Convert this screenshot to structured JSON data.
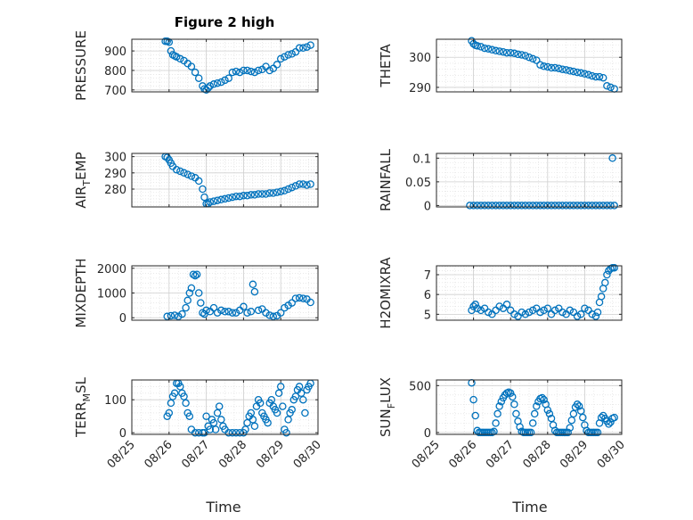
{
  "figure": {
    "title": "Figure 2 high",
    "xlabel_left": "Time",
    "xlabel_right": "Time",
    "marker_color": "#0072BD"
  },
  "chart_data": [
    {
      "type": "scatter",
      "name": "PRESSURE",
      "ylabel": {
        "main": "PRESSURE",
        "sub": ""
      },
      "ylim": [
        690,
        960
      ],
      "yticks": [
        700,
        800,
        900
      ],
      "yticklabels": [
        "700",
        "800",
        "900"
      ],
      "xlim": [
        "08/25",
        "08/30"
      ],
      "xtick_labels_shown": false,
      "grid": true,
      "x": [
        25.9,
        25.95,
        26.0,
        26.05,
        26.1,
        26.15,
        26.2,
        26.3,
        26.4,
        26.5,
        26.6,
        26.7,
        26.8,
        26.9,
        26.95,
        27.0,
        27.05,
        27.1,
        27.2,
        27.3,
        27.4,
        27.5,
        27.6,
        27.7,
        27.8,
        27.9,
        28.0,
        28.1,
        28.2,
        28.3,
        28.4,
        28.5,
        28.6,
        28.7,
        28.8,
        28.9,
        29.0,
        29.1,
        29.2,
        29.3,
        29.4,
        29.5,
        29.6,
        29.7,
        29.8
      ],
      "y": [
        950,
        950,
        945,
        900,
        880,
        875,
        870,
        860,
        850,
        835,
        820,
        790,
        760,
        720,
        705,
        700,
        710,
        720,
        730,
        735,
        740,
        750,
        760,
        790,
        795,
        790,
        800,
        800,
        795,
        790,
        800,
        805,
        820,
        800,
        810,
        830,
        860,
        870,
        880,
        885,
        895,
        915,
        915,
        920,
        930
      ]
    },
    {
      "type": "scatter",
      "name": "THETA",
      "ylabel": {
        "main": "THETA",
        "sub": ""
      },
      "ylim": [
        288.5,
        306
      ],
      "yticks": [
        290,
        300
      ],
      "yticklabels": [
        "290",
        "300"
      ],
      "xlim": [
        "08/25",
        "08/30"
      ],
      "xtick_labels_shown": false,
      "grid": true,
      "x": [
        25.95,
        26.0,
        26.05,
        26.1,
        26.2,
        26.3,
        26.4,
        26.5,
        26.6,
        26.7,
        26.8,
        26.9,
        27.0,
        27.1,
        27.2,
        27.3,
        27.4,
        27.5,
        27.6,
        27.7,
        27.8,
        27.9,
        28.0,
        28.1,
        28.2,
        28.3,
        28.4,
        28.5,
        28.6,
        28.7,
        28.8,
        28.9,
        29.0,
        29.1,
        29.2,
        29.3,
        29.4,
        29.5,
        29.6,
        29.7,
        29.8
      ],
      "y": [
        305.5,
        304.5,
        304,
        303.8,
        303.5,
        303,
        302.8,
        302.5,
        302.2,
        302,
        301.8,
        301.5,
        301.5,
        301.3,
        301,
        300.8,
        300.5,
        300,
        299.5,
        299,
        297.5,
        297,
        296.8,
        296.5,
        296.5,
        296.3,
        296,
        295.8,
        295.5,
        295.3,
        295,
        294.8,
        294.5,
        294.2,
        293.8,
        293.5,
        293.5,
        293.2,
        290.5,
        290,
        289.5
      ]
    },
    {
      "type": "scatter",
      "name": "AIR_TEMP",
      "ylabel": {
        "main": "AIR",
        "sub": "T",
        "rest": "EMP"
      },
      "ylim": [
        269,
        302
      ],
      "yticks": [
        280,
        290,
        300
      ],
      "yticklabels": [
        "280",
        "290",
        "300"
      ],
      "xlim": [
        "08/25",
        "08/30"
      ],
      "xtick_labels_shown": false,
      "grid": true,
      "x": [
        25.9,
        25.95,
        26.0,
        26.05,
        26.1,
        26.2,
        26.3,
        26.4,
        26.5,
        26.6,
        26.7,
        26.8,
        26.9,
        26.95,
        27.0,
        27.05,
        27.1,
        27.2,
        27.3,
        27.4,
        27.5,
        27.6,
        27.7,
        27.8,
        27.9,
        28.0,
        28.1,
        28.2,
        28.3,
        28.4,
        28.5,
        28.6,
        28.7,
        28.8,
        28.9,
        29.0,
        29.1,
        29.2,
        29.3,
        29.4,
        29.5,
        29.6,
        29.7,
        29.8
      ],
      "y": [
        300,
        299.5,
        298,
        296,
        294,
        292,
        291,
        290,
        289,
        288,
        287,
        285,
        280,
        275,
        271,
        271,
        272,
        272.5,
        273,
        273.5,
        274,
        274.5,
        275,
        275.5,
        275.5,
        276,
        276,
        276.5,
        276.5,
        277,
        277,
        277,
        277.5,
        277.5,
        278,
        278.5,
        279,
        280,
        281,
        282,
        283,
        283,
        282.5,
        283
      ]
    },
    {
      "type": "scatter",
      "name": "RAINFALL",
      "ylabel": {
        "main": "RAINFALL",
        "sub": ""
      },
      "ylim": [
        -0.003,
        0.11
      ],
      "yticks": [
        0,
        0.05,
        0.1
      ],
      "yticklabels": [
        "0",
        "0.05",
        "0.1"
      ],
      "xlim": [
        "08/25",
        "08/30"
      ],
      "xtick_labels_shown": false,
      "grid": true,
      "x": [
        25.9,
        26.0,
        26.1,
        26.2,
        26.3,
        26.4,
        26.5,
        26.6,
        26.7,
        26.8,
        26.9,
        27.0,
        27.1,
        27.2,
        27.3,
        27.4,
        27.5,
        27.6,
        27.7,
        27.8,
        27.9,
        28.0,
        28.1,
        28.2,
        28.3,
        28.4,
        28.5,
        28.6,
        28.7,
        28.8,
        28.9,
        29.0,
        29.1,
        29.2,
        29.3,
        29.4,
        29.5,
        29.6,
        29.7,
        29.75,
        29.8
      ],
      "y": [
        0,
        0,
        0,
        0,
        0,
        0,
        0,
        0,
        0,
        0,
        0,
        0,
        0,
        0,
        0,
        0,
        0,
        0,
        0,
        0,
        0,
        0,
        0,
        0,
        0,
        0,
        0,
        0,
        0,
        0,
        0,
        0,
        0,
        0,
        0,
        0,
        0,
        0,
        0,
        0.1,
        0
      ]
    },
    {
      "type": "scatter",
      "name": "MIXDEPTH",
      "ylabel": {
        "main": "MIXDEPTH",
        "sub": ""
      },
      "ylim": [
        -100,
        2100
      ],
      "yticks": [
        0,
        1000,
        2000
      ],
      "yticklabels": [
        "0",
        "1000",
        "2000"
      ],
      "xlim": [
        "08/25",
        "08/30"
      ],
      "xtick_labels_shown": false,
      "grid": true,
      "x": [
        25.95,
        26.05,
        26.15,
        26.25,
        26.35,
        26.45,
        26.5,
        26.55,
        26.6,
        26.65,
        26.7,
        26.75,
        26.8,
        26.85,
        26.9,
        26.95,
        27.0,
        27.1,
        27.2,
        27.3,
        27.4,
        27.5,
        27.6,
        27.7,
        27.8,
        27.9,
        28.0,
        28.1,
        28.2,
        28.25,
        28.3,
        28.4,
        28.5,
        28.6,
        28.7,
        28.8,
        28.9,
        29.0,
        29.1,
        29.2,
        29.3,
        29.4,
        29.5,
        29.6,
        29.7,
        29.8
      ],
      "y": [
        50,
        80,
        100,
        50,
        150,
        400,
        700,
        1000,
        1200,
        1750,
        1700,
        1750,
        1000,
        600,
        200,
        150,
        300,
        250,
        400,
        200,
        300,
        250,
        250,
        200,
        200,
        300,
        450,
        200,
        250,
        1350,
        1050,
        300,
        350,
        200,
        100,
        50,
        80,
        200,
        400,
        500,
        600,
        780,
        800,
        780,
        750,
        620
      ]
    },
    {
      "type": "scatter",
      "name": "H2OMIXRA",
      "ylabel": {
        "main": "H2OMIXRA",
        "sub": ""
      },
      "ylim": [
        4.7,
        7.45
      ],
      "yticks": [
        5,
        6,
        7
      ],
      "yticklabels": [
        "5",
        "6",
        "7"
      ],
      "xlim": [
        "08/25",
        "08/30"
      ],
      "xtick_labels_shown": false,
      "grid": true,
      "x": [
        25.95,
        26.0,
        26.05,
        26.1,
        26.2,
        26.3,
        26.4,
        26.5,
        26.6,
        26.7,
        26.8,
        26.9,
        27.0,
        27.1,
        27.2,
        27.3,
        27.4,
        27.5,
        27.6,
        27.7,
        27.8,
        27.9,
        28.0,
        28.1,
        28.2,
        28.3,
        28.4,
        28.5,
        28.6,
        28.7,
        28.8,
        28.9,
        29.0,
        29.1,
        29.2,
        29.3,
        29.35,
        29.4,
        29.45,
        29.5,
        29.55,
        29.6,
        29.65,
        29.7,
        29.75,
        29.8
      ],
      "y": [
        5.2,
        5.4,
        5.5,
        5.3,
        5.2,
        5.3,
        5.1,
        5.0,
        5.2,
        5.4,
        5.3,
        5.5,
        5.2,
        5.0,
        4.9,
        5.1,
        5.0,
        5.1,
        5.2,
        5.3,
        5.1,
        5.2,
        5.3,
        5.0,
        5.2,
        5.3,
        5.1,
        5.0,
        5.2,
        5.1,
        4.9,
        5.0,
        5.3,
        5.2,
        5.0,
        4.9,
        5.1,
        5.6,
        5.9,
        6.3,
        6.6,
        7.0,
        7.2,
        7.3,
        7.35,
        7.35
      ]
    },
    {
      "type": "scatter",
      "name": "TERR_MSL",
      "ylabel": {
        "main": "TERR",
        "sub": "M",
        "rest": "SL"
      },
      "ylim": [
        -5,
        160
      ],
      "yticks": [
        0,
        100
      ],
      "yticklabels": [
        "0",
        "100"
      ],
      "xlim": [
        "08/25",
        "08/30"
      ],
      "xticks": [
        25,
        26,
        27,
        28,
        29,
        30
      ],
      "xticklabels": [
        "08/25",
        "08/26",
        "08/27",
        "08/28",
        "08/29",
        "08/30"
      ],
      "grid": true,
      "x": [
        25.95,
        26.0,
        26.05,
        26.1,
        26.15,
        26.2,
        26.25,
        26.3,
        26.35,
        26.4,
        26.45,
        26.5,
        26.55,
        26.6,
        26.7,
        26.8,
        26.9,
        26.95,
        27.0,
        27.05,
        27.1,
        27.15,
        27.2,
        27.25,
        27.3,
        27.35,
        27.4,
        27.45,
        27.5,
        27.6,
        27.7,
        27.8,
        27.9,
        28.0,
        28.05,
        28.1,
        28.15,
        28.2,
        28.25,
        28.3,
        28.35,
        28.4,
        28.45,
        28.5,
        28.55,
        28.6,
        28.65,
        28.7,
        28.75,
        28.8,
        28.85,
        28.9,
        28.95,
        29.0,
        29.05,
        29.1,
        29.15,
        29.2,
        29.25,
        29.3,
        29.35,
        29.4,
        29.45,
        29.5,
        29.55,
        29.6,
        29.65,
        29.7,
        29.75,
        29.8
      ],
      "y": [
        50,
        60,
        90,
        110,
        120,
        150,
        150,
        140,
        120,
        110,
        90,
        60,
        50,
        10,
        0,
        0,
        0,
        0,
        50,
        20,
        10,
        40,
        30,
        10,
        60,
        80,
        40,
        20,
        10,
        0,
        0,
        0,
        0,
        0,
        10,
        30,
        50,
        60,
        40,
        20,
        80,
        100,
        90,
        60,
        50,
        40,
        30,
        90,
        100,
        80,
        70,
        60,
        120,
        140,
        80,
        10,
        0,
        40,
        60,
        70,
        100,
        110,
        130,
        140,
        120,
        100,
        60,
        130,
        140,
        150
      ]
    },
    {
      "type": "scatter",
      "name": "SUN_FLUX",
      "ylabel": {
        "main": "SUN",
        "sub": "F",
        "rest": "LUX"
      },
      "ylim": [
        -20,
        560
      ],
      "yticks": [
        0,
        500
      ],
      "yticklabels": [
        "0",
        "500"
      ],
      "xlim": [
        "08/25",
        "08/30"
      ],
      "xticks": [
        25,
        26,
        27,
        28,
        29,
        30
      ],
      "xticklabels": [
        "08/25",
        "08/26",
        "08/27",
        "08/28",
        "08/29",
        "08/30"
      ],
      "grid": true,
      "x": [
        25.95,
        26.0,
        26.05,
        26.1,
        26.15,
        26.2,
        26.25,
        26.3,
        26.35,
        26.4,
        26.45,
        26.5,
        26.55,
        26.6,
        26.65,
        26.7,
        26.75,
        26.8,
        26.85,
        26.9,
        26.95,
        27.0,
        27.05,
        27.1,
        27.15,
        27.2,
        27.25,
        27.3,
        27.35,
        27.4,
        27.45,
        27.5,
        27.55,
        27.6,
        27.65,
        27.7,
        27.75,
        27.8,
        27.85,
        27.9,
        27.95,
        28.0,
        28.05,
        28.1,
        28.15,
        28.2,
        28.25,
        28.3,
        28.35,
        28.4,
        28.45,
        28.5,
        28.55,
        28.6,
        28.65,
        28.7,
        28.75,
        28.8,
        28.85,
        28.9,
        28.95,
        29.0,
        29.05,
        29.1,
        29.15,
        29.2,
        29.25,
        29.3,
        29.35,
        29.4,
        29.45,
        29.5,
        29.55,
        29.6,
        29.65,
        29.7,
        29.75,
        29.8
      ],
      "y": [
        530,
        350,
        180,
        20,
        0,
        0,
        0,
        0,
        0,
        0,
        0,
        0,
        10,
        100,
        200,
        280,
        330,
        370,
        400,
        420,
        430,
        420,
        380,
        300,
        200,
        120,
        60,
        10,
        0,
        0,
        0,
        0,
        0,
        100,
        200,
        280,
        330,
        360,
        370,
        350,
        300,
        240,
        200,
        150,
        80,
        20,
        0,
        0,
        0,
        0,
        0,
        0,
        0,
        50,
        130,
        200,
        270,
        300,
        280,
        230,
        160,
        80,
        20,
        0,
        0,
        0,
        0,
        0,
        0,
        100,
        160,
        180,
        150,
        120,
        90,
        110,
        150,
        160
      ]
    }
  ]
}
